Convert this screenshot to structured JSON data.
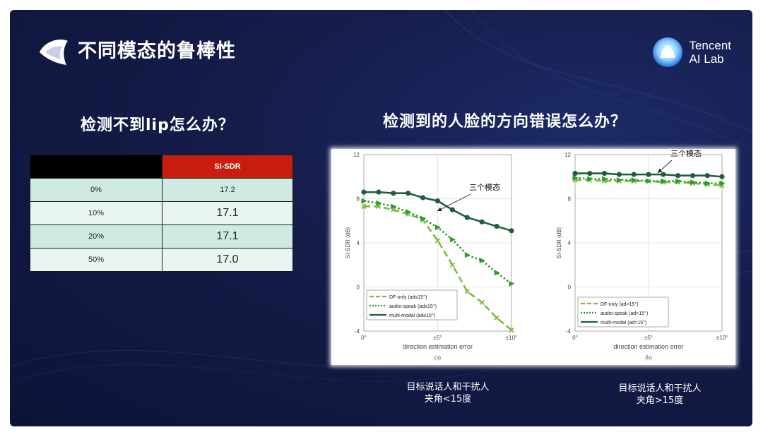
{
  "slide": {
    "title": "不同模态的鲁棒性",
    "brand": {
      "line1": "Tencent",
      "line2": "AI Lab"
    },
    "question_left": "检测不到lip怎么办？",
    "question_right": "检测到的人脸的方向错误怎么办？",
    "caption_a": {
      "line1": "目标说话人和干扰人",
      "line2": "夹角<15度"
    },
    "caption_b": {
      "line1": "目标说话人和干扰人",
      "line2": "夹角>15度"
    }
  },
  "table": {
    "header": "SI-SDR",
    "rows": [
      {
        "label": "0%",
        "value": "17.2"
      },
      {
        "label": "10%",
        "value": "17.1"
      },
      {
        "label": "20%",
        "value": "17.1"
      },
      {
        "label": "50%",
        "value": "17.0"
      }
    ]
  },
  "colors": {
    "header_red": "#c81e0f",
    "row_teal": "#cfe9e3",
    "row_light": "#e9f5f2",
    "dark_green": "#1e5e3a",
    "mid_green": "#2e9a2e",
    "light_green": "#7dbb3a"
  },
  "chart_data": [
    {
      "type": "line",
      "sublabel": "(a)",
      "annotation": "三个模态",
      "xlabel": "direction estimation error",
      "ylabel": "SI-SDR (dB)",
      "xlim": [
        0,
        10
      ],
      "ylim": [
        -4,
        12
      ],
      "yticks": [
        -4,
        0,
        4,
        8,
        12
      ],
      "xticks": [
        {
          "v": 0,
          "label": "0°"
        },
        {
          "v": 5,
          "label": "±5°"
        },
        {
          "v": 10,
          "label": "±10°"
        }
      ],
      "grid": true,
      "legend_position": "bottom-left",
      "series": [
        {
          "name": "DF-only (ad≤15°)",
          "color": "#7dbb3a",
          "style": "dashed",
          "marker": "x",
          "x": [
            0,
            1,
            2,
            3,
            4,
            5,
            6,
            7,
            8,
            9,
            10
          ],
          "y": [
            7.3,
            7.3,
            7.0,
            6.6,
            6.1,
            4.2,
            2.0,
            -0.4,
            -1.4,
            -2.8,
            -3.9
          ]
        },
        {
          "name": "audio-speak (ad≤15°)",
          "color": "#2e9a2e",
          "style": "dotted",
          "marker": "triangle",
          "x": [
            0,
            1,
            2,
            3,
            4,
            5,
            6,
            7,
            8,
            9,
            10
          ],
          "y": [
            7.8,
            7.6,
            7.3,
            6.8,
            6.2,
            5.4,
            4.3,
            2.9,
            2.4,
            1.3,
            0.3
          ]
        },
        {
          "name": "multi-modal (ad≤15°)",
          "color": "#1e5e3a",
          "style": "solid",
          "marker": "circle",
          "x": [
            0,
            1,
            2,
            3,
            4,
            5,
            6,
            7,
            8,
            9,
            10
          ],
          "y": [
            8.6,
            8.6,
            8.5,
            8.5,
            8.1,
            7.8,
            7.0,
            6.3,
            5.9,
            5.5,
            5.1
          ]
        }
      ]
    },
    {
      "type": "line",
      "sublabel": "(b)",
      "annotation": "三个模态",
      "xlabel": "direction estimation error",
      "ylabel": "SI-SDR (dB)",
      "xlim": [
        0,
        10
      ],
      "ylim": [
        -4,
        12
      ],
      "yticks": [
        -4,
        0,
        4,
        8,
        12
      ],
      "xticks": [
        {
          "v": 0,
          "label": "0°"
        },
        {
          "v": 5,
          "label": "±5°"
        },
        {
          "v": 10,
          "label": "±10°"
        }
      ],
      "grid": true,
      "legend_position": "bottom-left",
      "series": [
        {
          "name": "DF-only (ad>15°)",
          "color": "#7dbb3a",
          "style": "dashed",
          "marker": "x",
          "x": [
            0,
            1,
            2,
            3,
            4,
            5,
            6,
            7,
            8,
            9,
            10
          ],
          "y": [
            9.7,
            9.7,
            9.6,
            9.6,
            9.6,
            9.6,
            9.5,
            9.5,
            9.4,
            9.3,
            9.2
          ]
        },
        {
          "name": "audio-speak (ad>15°)",
          "color": "#2e9a2e",
          "style": "dotted",
          "marker": "triangle",
          "x": [
            0,
            1,
            2,
            3,
            4,
            5,
            6,
            7,
            8,
            9,
            10
          ],
          "y": [
            9.9,
            9.8,
            9.8,
            9.7,
            9.7,
            9.6,
            9.6,
            9.6,
            9.5,
            9.4,
            9.4
          ]
        },
        {
          "name": "multi-modal (ad>15°)",
          "color": "#1e5e3a",
          "style": "solid",
          "marker": "circle",
          "x": [
            0,
            1,
            2,
            3,
            4,
            5,
            6,
            7,
            8,
            9,
            10
          ],
          "y": [
            10.3,
            10.3,
            10.3,
            10.2,
            10.2,
            10.2,
            10.2,
            10.1,
            10.1,
            10.1,
            10.0
          ]
        }
      ]
    }
  ]
}
